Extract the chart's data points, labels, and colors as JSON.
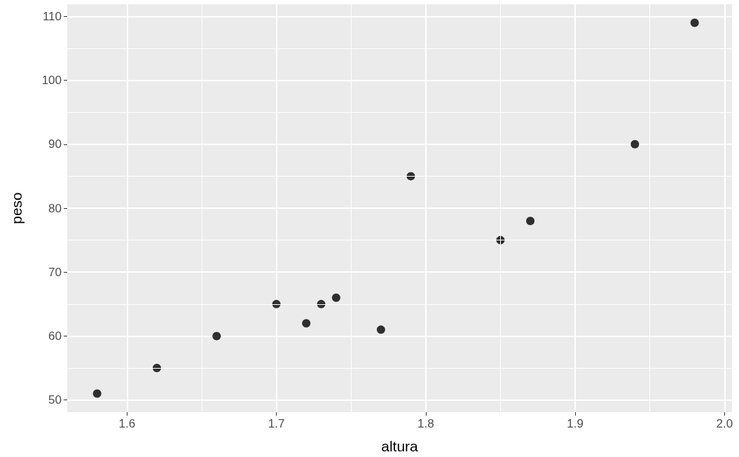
{
  "chart_data": {
    "type": "scatter",
    "xlabel": "altura",
    "ylabel": "peso",
    "x": [
      1.58,
      1.62,
      1.66,
      1.7,
      1.72,
      1.73,
      1.74,
      1.77,
      1.79,
      1.85,
      1.87,
      1.94,
      1.98
    ],
    "values": [
      51,
      55,
      60,
      65,
      62,
      65,
      66,
      61,
      85,
      75,
      78,
      90,
      109
    ],
    "color": "#000000",
    "marker": "circle",
    "grid": true,
    "xlim": [
      1.56,
      2.005
    ],
    "ylim": [
      48.1,
      111.9
    ],
    "xticks": [
      1.6,
      {
        "value": 1.65,
        "label": null
      },
      1.7,
      {
        "value": 1.75,
        "label": null
      },
      1.8,
      {
        "value": 1.85,
        "label": null
      },
      1.9,
      {
        "value": 1.95,
        "label": null
      },
      {
        "value": 2.0,
        "label": "2.0"
      }
    ],
    "yticks": [
      50,
      {
        "value": 55,
        "label": null
      },
      60,
      {
        "value": 65,
        "label": null
      },
      70,
      {
        "value": 75,
        "label": null
      },
      80,
      {
        "value": 85,
        "label": null
      },
      90,
      {
        "value": 95,
        "label": null
      },
      100,
      {
        "value": 105,
        "label": null
      },
      110
    ]
  }
}
